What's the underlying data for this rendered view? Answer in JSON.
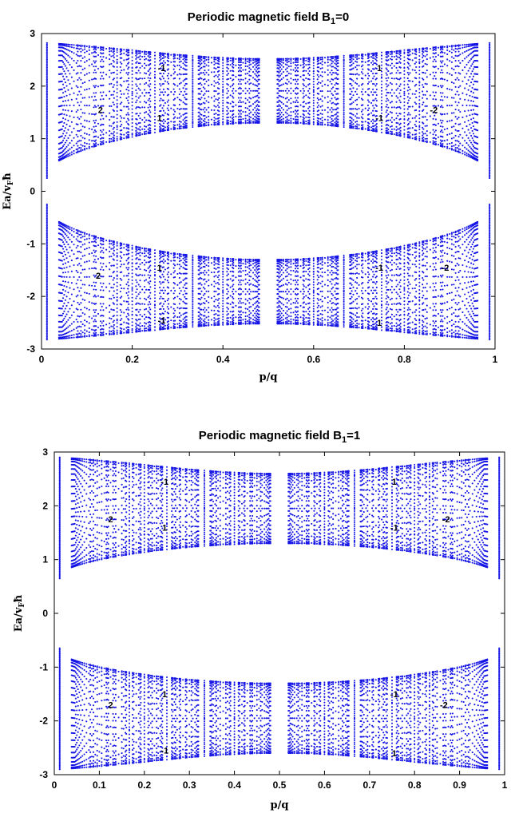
{
  "chart_data": [
    {
      "type": "scatter",
      "title": "Periodic magnetic field B",
      "title_sub": "1",
      "title_tail": "=0",
      "xlabel": "p/q",
      "ylabel": "Ea/v",
      "ylabel_sub": "F",
      "ylabel_tail": "ħ",
      "xlim": [
        0,
        1
      ],
      "ylim": [
        -3,
        3
      ],
      "xticks": [
        "0",
        "0.2",
        "0.4",
        "0.6",
        "0.8",
        "1"
      ],
      "yticks": [
        "3",
        "2",
        "1",
        "0",
        "-1",
        "-2",
        "-3"
      ],
      "color": "#1515e6",
      "B1": 0,
      "band_edges": {
        "inner_min": 0.25,
        "inner_max": 1.3,
        "outer_max": 2.82
      },
      "annotations": [
        {
          "text": "-1",
          "x": 0.265,
          "y": 2.35
        },
        {
          "text": "1",
          "x": 0.745,
          "y": 2.35
        },
        {
          "text": "2",
          "x": 0.13,
          "y": 1.55
        },
        {
          "text": "-2",
          "x": 0.865,
          "y": 1.55
        },
        {
          "text": "1",
          "x": 0.26,
          "y": 1.4
        },
        {
          "text": "-1",
          "x": 0.745,
          "y": 1.4
        },
        {
          "text": "1",
          "x": 0.26,
          "y": -1.45
        },
        {
          "text": "-1",
          "x": 0.745,
          "y": -1.45
        },
        {
          "text": "2",
          "x": 0.125,
          "y": -1.6
        },
        {
          "text": "-2",
          "x": 0.89,
          "y": -1.45
        },
        {
          "text": "-1",
          "x": 0.265,
          "y": -2.45
        },
        {
          "text": "1",
          "x": 0.745,
          "y": -2.5
        }
      ]
    },
    {
      "type": "scatter",
      "title": "Periodic magnetic field B",
      "title_sub": "1",
      "title_tail": "=1",
      "xlabel": "p/q",
      "ylabel": "Ea/v",
      "ylabel_sub": "F",
      "ylabel_tail": "ħ",
      "xlim": [
        0,
        1
      ],
      "ylim": [
        -3,
        3
      ],
      "xticks": [
        "0",
        "0.1",
        "0.2",
        "0.3",
        "0.4",
        "0.5",
        "0.6",
        "0.7",
        "0.8",
        "0.9",
        "1"
      ],
      "yticks": [
        "3",
        "2",
        "1",
        "0",
        "-1",
        "-2",
        "-3"
      ],
      "color": "#1515e6",
      "B1": 1,
      "band_edges": {
        "inner_min": 0.65,
        "inner_max": 1.3,
        "outer_max": 2.9
      },
      "annotations": [
        {
          "text": "-1",
          "x": 0.245,
          "y": 2.45
        },
        {
          "text": "1",
          "x": 0.755,
          "y": 2.45
        },
        {
          "text": "2",
          "x": 0.125,
          "y": 1.75
        },
        {
          "text": "-2",
          "x": 0.87,
          "y": 1.75
        },
        {
          "text": "1",
          "x": 0.245,
          "y": 1.6
        },
        {
          "text": "-1",
          "x": 0.755,
          "y": 1.6
        },
        {
          "text": "1",
          "x": 0.245,
          "y": -1.5
        },
        {
          "text": "-1",
          "x": 0.755,
          "y": -1.5
        },
        {
          "text": "2",
          "x": 0.125,
          "y": -1.7
        },
        {
          "text": "-2",
          "x": 0.865,
          "y": -1.7
        },
        {
          "text": "-1",
          "x": 0.245,
          "y": -2.55
        },
        {
          "text": "1",
          "x": 0.755,
          "y": -2.6
        }
      ]
    }
  ]
}
